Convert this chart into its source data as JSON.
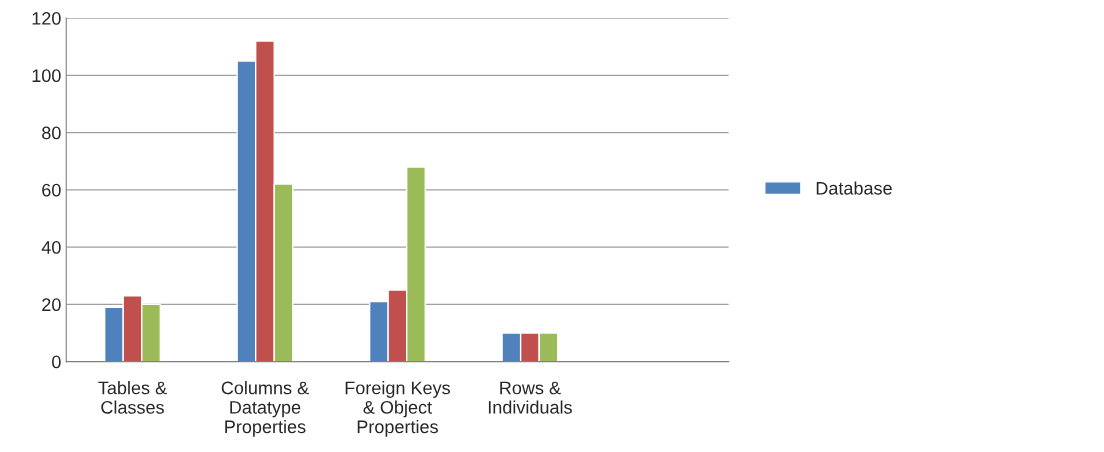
{
  "chart_data": {
    "type": "bar",
    "categories": [
      "Tables & Classes",
      "Columns & Datatype Properties",
      "Foreign Keys & Object Properties",
      "Rows & Individuals",
      null
    ],
    "series": [
      {
        "name": "Database",
        "color": "#4f81bd",
        "values": [
          19,
          105,
          21,
          10,
          null
        ]
      },
      {
        "color": "#c0504d",
        "values": [
          23,
          112,
          25,
          10,
          null
        ]
      },
      {
        "color": "#9bbb59",
        "values": [
          20,
          62,
          68,
          10,
          null
        ]
      }
    ],
    "ylim": [
      0,
      120
    ],
    "yticks": [
      0,
      20,
      40,
      60,
      80,
      100,
      120
    ],
    "grid": "y",
    "legend": "right"
  }
}
